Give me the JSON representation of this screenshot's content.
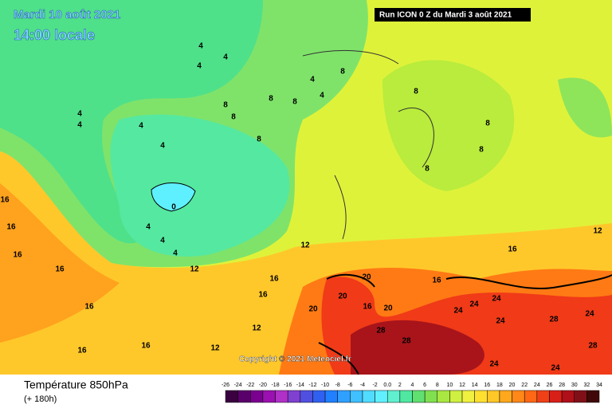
{
  "header": {
    "date": "Mardi 10 août 2021",
    "time": "14:00 locale",
    "run": "Run ICON 0 Z du Mardi 3 août 2021"
  },
  "map": {
    "copyright": "Copyright © 2021 Meteociel.fr",
    "contour_labels": [
      0,
      4,
      4,
      4,
      4,
      4,
      4,
      4,
      4,
      4,
      4,
      4,
      4,
      8,
      8,
      8,
      8,
      8,
      8,
      8,
      8,
      8,
      8,
      12,
      12,
      12,
      12,
      12,
      16,
      16,
      16,
      16,
      16,
      16,
      16,
      16,
      16,
      16,
      16,
      16,
      20,
      20,
      20,
      20,
      24,
      24,
      24,
      24,
      24,
      24,
      24,
      28,
      28,
      28,
      28
    ]
  },
  "footer": {
    "title": "Température 850hPa",
    "subtitle": "(+ 180h)",
    "legend_labels": [
      "-26",
      "-24",
      "-22",
      "-20",
      "-18",
      "-16",
      "-14",
      "-12",
      "-10",
      "-8",
      "-6",
      "-4",
      "-2",
      "0.0",
      "2",
      "4",
      "6",
      "8",
      "10",
      "12",
      "14",
      "16",
      "18",
      "20",
      "22",
      "24",
      "26",
      "28",
      "30",
      "32",
      "34"
    ]
  }
}
